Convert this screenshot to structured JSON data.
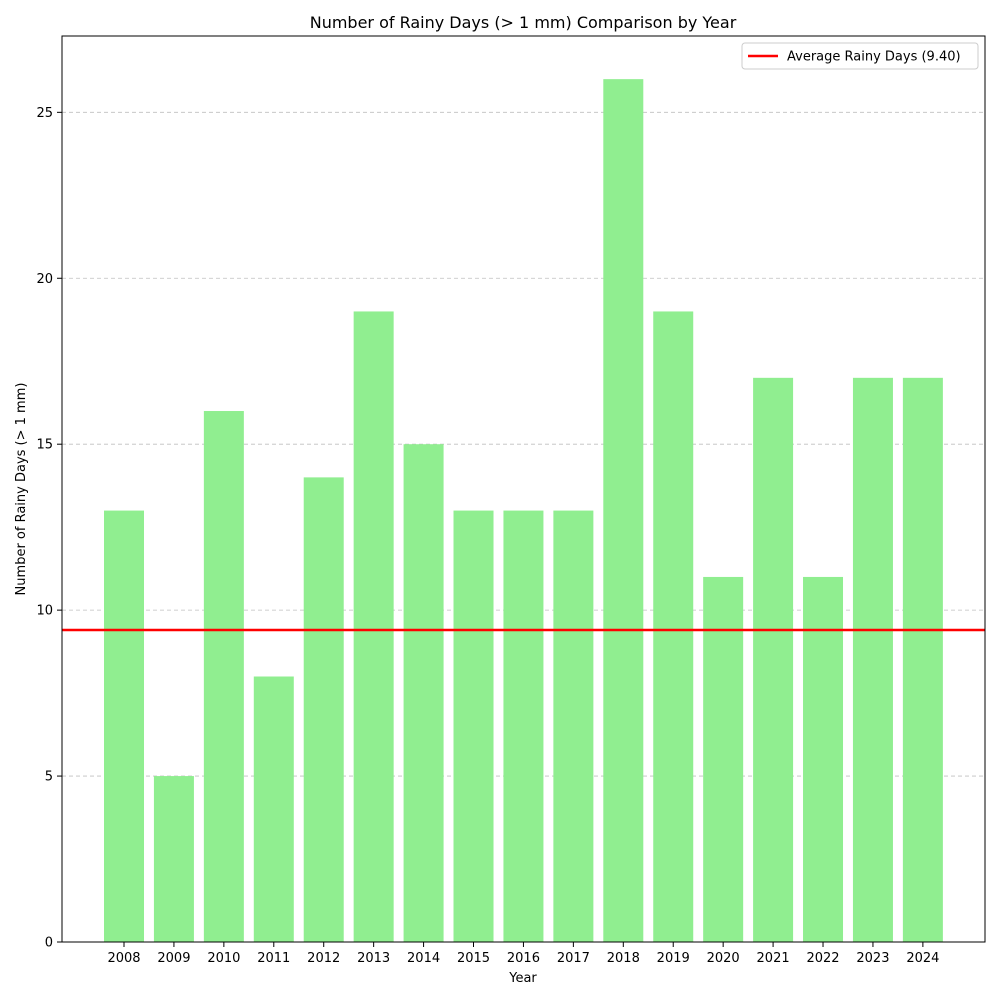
{
  "chart_data": {
    "type": "bar",
    "title": "Number of Rainy Days (> 1 mm) Comparison by Year",
    "xlabel": "Year",
    "ylabel": "Number of Rainy Days (> 1 mm)",
    "categories": [
      "2008",
      "2009",
      "2010",
      "2011",
      "2012",
      "2013",
      "2014",
      "2015",
      "2016",
      "2017",
      "2018",
      "2019",
      "2020",
      "2021",
      "2022",
      "2023",
      "2024"
    ],
    "values": [
      13,
      5,
      16,
      8,
      14,
      19,
      15,
      13,
      13,
      13,
      26,
      19,
      11,
      17,
      11,
      17,
      17
    ],
    "ylim": [
      0,
      27.3
    ],
    "yticks": [
      0,
      5,
      10,
      15,
      20,
      25
    ],
    "grid": {
      "y": true,
      "style": "dashed"
    },
    "bar_color": "#90ee90",
    "reference_line": {
      "value": 9.4,
      "label": "Average Rainy Days (9.40)",
      "color": "#ff0000"
    },
    "legend": {
      "position": "top-right"
    }
  }
}
